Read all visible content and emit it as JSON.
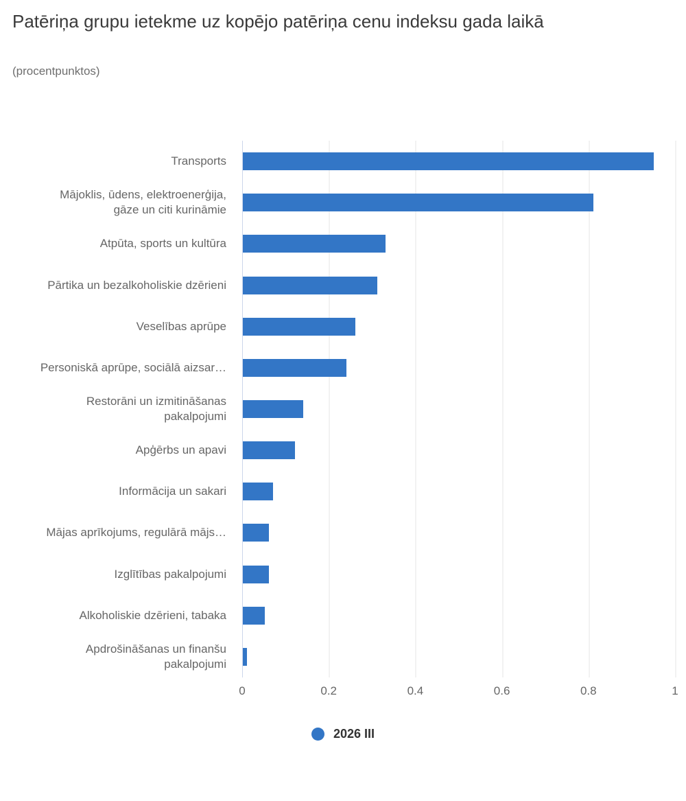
{
  "chart": {
    "title": "Patēriņa grupu ietekme uz kopējo patēriņa cenu indeksu gada laikā",
    "subtitle": "(procentpunktos)",
    "bar_color": "#3376c6",
    "axis_line_color": "#ccd6eb",
    "gridline_color": "#e6e6e6",
    "legend": {
      "label": "2026 III",
      "marker_color": "#3376c6"
    }
  },
  "chart_data": {
    "type": "bar",
    "orientation": "horizontal",
    "title": "Patēriņa grupu ietekme uz kopējo patēriņa cenu indeksu gada laikā",
    "subtitle": "(procentpunktos)",
    "categories": [
      "Transports",
      "Mājoklis, ūdens, elektroenerģija,\ngāze un citi kurināmie",
      "Atpūta, sports un kultūra",
      "Pārtika un bezalkoholiskie dzērieni",
      "Veselības aprūpe",
      "Personiskā aprūpe, sociālā aizsar…",
      "Restorāni un izmitināšanas\npakalpojumi",
      "Apģērbs un apavi",
      "Informācija un sakari",
      "Mājas aprīkojums, regulārā mājs…",
      "Izglītības pakalpojumi",
      "Alkoholiskie dzērieni, tabaka",
      "Apdrošināšanas un finanšu\npakalpojumi"
    ],
    "series": [
      {
        "name": "2026 III",
        "values": [
          0.95,
          0.81,
          0.33,
          0.31,
          0.26,
          0.24,
          0.14,
          0.12,
          0.07,
          0.06,
          0.06,
          0.05,
          0.01
        ]
      }
    ],
    "xlim": [
      0,
      1
    ],
    "xticks": [
      0,
      0.2,
      0.4,
      0.6,
      0.8,
      1
    ],
    "xtick_labels": [
      "0",
      "0.2",
      "0.4",
      "0.6",
      "0.8",
      "1"
    ],
    "xlabel": "",
    "ylabel": "",
    "grid": true,
    "legend_position": "bottom"
  }
}
